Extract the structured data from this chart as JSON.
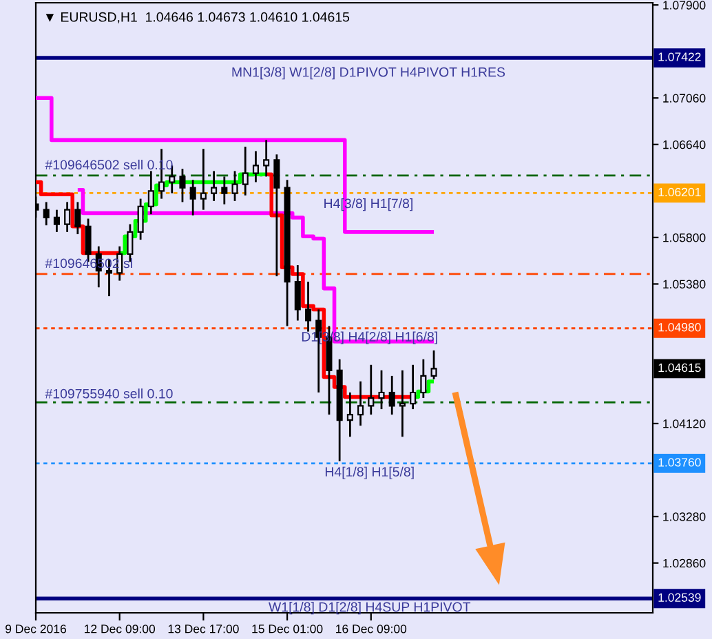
{
  "chart_data": {
    "type": "candlestick",
    "title": "▼ EURUSD,H1  1.04646 1.04673 1.04610 1.04615",
    "categories": [
      "9 Dec 2016",
      null,
      null,
      null,
      null,
      null,
      null,
      null,
      "12 Dec 09:00",
      null,
      null,
      null,
      null,
      null,
      null,
      null,
      "13 Dec 17:00",
      null,
      null,
      null,
      null,
      null,
      null,
      null,
      "15 Dec 01:00",
      null,
      null,
      null,
      null,
      null,
      null,
      null,
      "16 Dec 09:00",
      null,
      null,
      null,
      null,
      null,
      null,
      null,
      null,
      null,
      null,
      null,
      null,
      null,
      null,
      null,
      null,
      null,
      null,
      null,
      null,
      null,
      null,
      null,
      null,
      null,
      null
    ],
    "ohlc": [
      [
        1.061,
        1.0617,
        1.0598,
        1.0605
      ],
      [
        1.0605,
        1.0612,
        1.0591,
        1.0598
      ],
      [
        1.0598,
        1.0605,
        1.0585,
        1.0592
      ],
      [
        1.0592,
        1.0612,
        1.0585,
        1.0605
      ],
      [
        1.0605,
        1.0612,
        1.0583,
        1.059
      ],
      [
        1.059,
        1.0597,
        1.0558,
        1.0565
      ],
      [
        1.0565,
        1.0572,
        1.0535,
        1.055
      ],
      [
        1.055,
        1.056,
        1.0527,
        1.0548
      ],
      [
        1.0548,
        1.0572,
        1.0541,
        1.0565
      ],
      [
        1.0565,
        1.0592,
        1.0558,
        1.0585
      ],
      [
        1.0585,
        1.0615,
        1.0578,
        1.0608
      ],
      [
        1.0608,
        1.064,
        1.0601,
        1.0622
      ],
      [
        1.0622,
        1.066,
        1.0615,
        1.063
      ],
      [
        1.063,
        1.0645,
        1.062,
        1.0635
      ],
      [
        1.0635,
        1.0642,
        1.0612,
        1.0625
      ],
      [
        1.0625,
        1.0632,
        1.06,
        1.0615
      ],
      [
        1.0615,
        1.066,
        1.0605,
        1.062
      ],
      [
        1.062,
        1.064,
        1.0613,
        1.0625
      ],
      [
        1.0625,
        1.0635,
        1.061,
        1.062
      ],
      [
        1.062,
        1.064,
        1.0613,
        1.0628
      ],
      [
        1.0628,
        1.0662,
        1.0618,
        1.0638
      ],
      [
        1.0638,
        1.0658,
        1.063,
        1.0645
      ],
      [
        1.0645,
        1.0668,
        1.0635,
        1.065
      ],
      [
        1.065,
        1.0655,
        1.0545,
        1.0625
      ],
      [
        1.0625,
        1.0632,
        1.05,
        1.054
      ],
      [
        1.054,
        1.0555,
        1.0505,
        1.0515
      ],
      [
        1.0515,
        1.054,
        1.0495,
        1.0505
      ],
      [
        1.0505,
        1.0515,
        1.044,
        1.049
      ],
      [
        1.049,
        1.05,
        1.042,
        1.046
      ],
      [
        1.046,
        1.047,
        1.0378,
        1.0415
      ],
      [
        1.0415,
        1.044,
        1.04,
        1.042
      ],
      [
        1.042,
        1.045,
        1.041,
        1.0428
      ],
      [
        1.0428,
        1.0465,
        1.042,
        1.0435
      ],
      [
        1.0435,
        1.046,
        1.0425,
        1.044
      ],
      [
        1.044,
        1.0455,
        1.042,
        1.0428
      ],
      [
        1.0428,
        1.046,
        1.04,
        1.043
      ],
      [
        1.043,
        1.0465,
        1.0425,
        1.044
      ],
      [
        1.044,
        1.047,
        1.0435,
        1.0455
      ],
      [
        1.0455,
        1.0478,
        1.0452,
        1.04615
      ],
      null,
      null,
      null,
      null,
      null,
      null,
      null,
      null,
      null,
      null,
      null,
      null,
      null,
      null,
      null,
      null,
      null,
      null,
      null,
      null
    ],
    "color": "#000000",
    "series": [
      {
        "type": "step",
        "color": "#ff00ff",
        "values": [
          1.0706,
          1.0706,
          1.0668,
          1.0668,
          1.0668,
          1.0668,
          1.0668,
          1.0668,
          1.0668,
          1.0668,
          1.0668,
          1.0668,
          1.0668,
          1.0668,
          1.0668,
          1.0668,
          1.0668,
          1.0668,
          1.0668,
          1.0668,
          1.0668,
          1.0668,
          1.0668,
          1.0668,
          1.0668,
          1.0668,
          1.0668,
          1.0668,
          1.0668,
          1.0668,
          1.0585,
          1.0585,
          1.0585,
          1.0585,
          1.0585,
          1.0585,
          1.0585,
          1.0585,
          1.0585,
          null,
          null,
          null,
          null,
          null,
          null,
          null,
          null,
          null,
          null,
          null,
          null,
          null,
          null,
          null,
          null,
          null,
          null,
          null,
          null
        ]
      },
      {
        "type": "step",
        "color": "#ff00ff",
        "values": [
          null,
          null,
          null,
          null,
          1.0623,
          1.0602,
          1.0602,
          1.0602,
          1.0602,
          1.0602,
          1.0602,
          1.0602,
          1.0602,
          1.0602,
          1.0602,
          1.0602,
          1.0602,
          1.0602,
          1.0602,
          1.0602,
          1.0602,
          1.0602,
          1.0602,
          1.0602,
          1.0602,
          1.0598,
          1.0581,
          1.0579,
          1.0534,
          1.0486,
          1.0486,
          1.0486,
          1.0486,
          1.0486,
          1.0486,
          1.0486,
          1.0486,
          1.0486,
          1.0486,
          null,
          null,
          null,
          null,
          null,
          null,
          null,
          null,
          null,
          null,
          null,
          null,
          null,
          null,
          null,
          null,
          null,
          null,
          null,
          null
        ]
      },
      {
        "type": "step",
        "color": "#ff0000",
        "values": [
          1.063,
          1.0619,
          1.0619,
          1.0619,
          1.059,
          1.0566,
          1.0566,
          1.0566,
          1.0566,
          null,
          null,
          null,
          null,
          null,
          null,
          null,
          null,
          null,
          null,
          null,
          null,
          null,
          null,
          null,
          null,
          null,
          null,
          null,
          null,
          null,
          null,
          null,
          null,
          null,
          null,
          null,
          null,
          null,
          null,
          null,
          null,
          null,
          null,
          null,
          null,
          null,
          null,
          null,
          null,
          null,
          null,
          null,
          null,
          null,
          null,
          null,
          null,
          null,
          null
        ]
      },
      {
        "type": "step",
        "color": "#00ff00",
        "values": [
          null,
          null,
          null,
          null,
          null,
          null,
          null,
          null,
          1.0566,
          1.0581,
          1.0595,
          1.061,
          1.0627,
          1.063,
          1.063,
          1.063,
          1.063,
          1.063,
          1.063,
          1.063,
          1.0637,
          1.0637,
          1.0637,
          null,
          null,
          null,
          null,
          null,
          null,
          null,
          null,
          null,
          null,
          null,
          null,
          null,
          null,
          null,
          null,
          null,
          null,
          null,
          null,
          null,
          null,
          null,
          null,
          null,
          null,
          null,
          null,
          null,
          null,
          null,
          null,
          null,
          null,
          null,
          null
        ]
      },
      {
        "type": "step",
        "color": "#ff0000",
        "values": [
          null,
          null,
          null,
          null,
          null,
          null,
          null,
          null,
          null,
          null,
          null,
          null,
          null,
          null,
          null,
          null,
          null,
          null,
          null,
          null,
          null,
          null,
          1.0637,
          1.06,
          1.0553,
          1.0547,
          1.0518,
          1.0515,
          1.0454,
          1.0445,
          1.0436,
          1.0436,
          1.0436,
          1.0436,
          1.0436,
          1.0436,
          1.0436,
          null,
          null,
          null,
          null,
          null,
          null,
          null,
          null,
          null,
          null,
          null,
          null,
          null,
          null,
          null,
          null,
          null,
          null,
          null,
          null,
          null,
          null
        ]
      },
      {
        "type": "step",
        "color": "#00ff00",
        "values": [
          null,
          null,
          null,
          null,
          null,
          null,
          null,
          null,
          null,
          null,
          null,
          null,
          null,
          null,
          null,
          null,
          null,
          null,
          null,
          null,
          null,
          null,
          null,
          null,
          null,
          null,
          null,
          null,
          null,
          null,
          null,
          null,
          null,
          null,
          null,
          null,
          1.0436,
          1.0441,
          1.045,
          null,
          null,
          null,
          null,
          null,
          null,
          null,
          null,
          null,
          null,
          null,
          null,
          null,
          null,
          null,
          null,
          null,
          null,
          null,
          null
        ]
      }
    ],
    "ylim": [
      1.0241,
      1.0792
    ],
    "yticks": [
      {
        "value": 1.079,
        "label": "1.07900"
      },
      {
        "value": 1.0706,
        "label": "1.07060"
      },
      {
        "value": 1.0664,
        "label": "1.06640"
      },
      {
        "value": 1.058,
        "label": "1.05800"
      },
      {
        "value": 1.0538,
        "label": "1.05380"
      },
      {
        "value": 1.0412,
        "label": "1.04120"
      },
      {
        "value": 1.0328,
        "label": "1.03280"
      },
      {
        "value": 1.0286,
        "label": "1.02860"
      }
    ],
    "ref_lines": [
      {
        "axis": "y",
        "value": 1.07422,
        "label": "1.07422",
        "color": "#000080",
        "line_style": "solid"
      },
      {
        "axis": "y",
        "value": 1.06201,
        "label": "1.06201",
        "color": "#ffa500",
        "line_style": "dotted"
      },
      {
        "axis": "y",
        "value": 1.0498,
        "label": "1.04980",
        "color": "#ff4500",
        "line_style": "dotted"
      },
      {
        "axis": "y",
        "value": 1.0376,
        "label": "1.03760",
        "color": "#1e90ff",
        "line_style": "dotted"
      },
      {
        "axis": "y",
        "value": 1.02539,
        "label": "1.02539",
        "color": "#000080",
        "line_style": "solid"
      },
      {
        "axis": "y",
        "value": 1.0636,
        "label": null,
        "color": "#006400",
        "line_style": "dashed"
      },
      {
        "axis": "y",
        "value": 1.0547,
        "label": null,
        "color": "#ff4500",
        "line_style": "dashed"
      },
      {
        "axis": "y",
        "value": 1.0431,
        "label": null,
        "color": "#006400",
        "line_style": "dashed"
      }
    ],
    "annotations": [
      {
        "text": "MN1[3/8] W1[2/8] D1PIVOT H4PIVOT H1RES",
        "y": 1.07422
      },
      {
        "text": "H4[3/8] H1[7/8]",
        "y": 1.06201
      },
      {
        "text": "D1[3/8] H4[2/8] H1[6/8]",
        "y": 1.0498
      },
      {
        "text": "H4[1/8] H1[5/8]",
        "y": 1.0376
      },
      {
        "text": "W1[1/8] D1[2/8] H4SUP H1PIVOT",
        "y": 1.02539
      },
      {
        "text": "#109646502 sell 0.10",
        "y": 1.0636
      },
      {
        "text": "#109646502 sl",
        "y": 1.0547
      },
      {
        "text": "#109755940 sell 0.10",
        "y": 1.0431
      },
      "1.04615"
    ],
    "grid": false,
    "legend": false
  }
}
